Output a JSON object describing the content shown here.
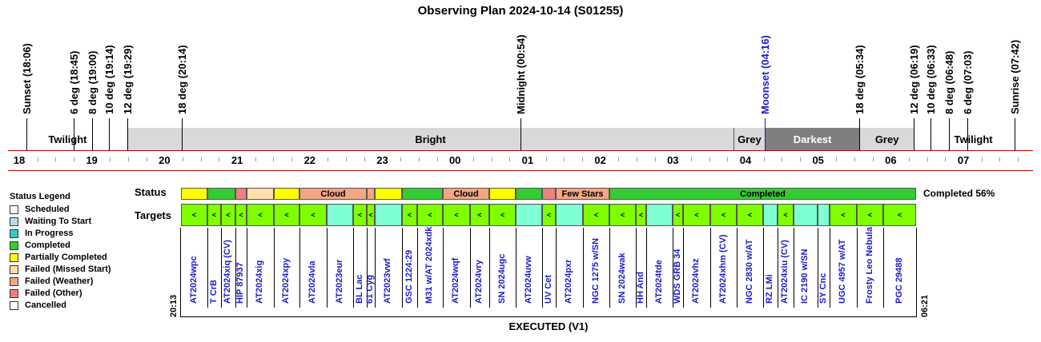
{
  "title": "Observing Plan 2024-10-14 (S01255)",
  "events": [
    {
      "label": "Sunset (18:06)",
      "hour": 18.1,
      "color": "#000"
    },
    {
      "label": "6 deg (18:45)",
      "hour": 18.75,
      "color": "#000"
    },
    {
      "label": "8 deg (19:00)",
      "hour": 19.0,
      "color": "#000"
    },
    {
      "label": "10 deg (19:14)",
      "hour": 19.233,
      "color": "#000"
    },
    {
      "label": "12 deg (19:29)",
      "hour": 19.483,
      "color": "#000"
    },
    {
      "label": "18 deg (20:14)",
      "hour": 20.233,
      "color": "#000"
    },
    {
      "label": "Midnight (00:54)",
      "hour": 24.9,
      "color": "#000"
    },
    {
      "label": "Moonset (04:16)",
      "hour": 28.267,
      "color": "#1a1acc"
    },
    {
      "label": "18 deg (05:34)",
      "hour": 29.567,
      "color": "#000"
    },
    {
      "label": "12 deg (06:19)",
      "hour": 30.317,
      "color": "#000"
    },
    {
      "label": "10 deg (06:33)",
      "hour": 30.55,
      "color": "#000"
    },
    {
      "label": "8 deg (06:48)",
      "hour": 30.8,
      "color": "#000"
    },
    {
      "label": "6 deg (07:03)",
      "hour": 31.05,
      "color": "#000"
    },
    {
      "label": "Sunrise (07:42)",
      "hour": 31.7,
      "color": "#000"
    }
  ],
  "bands": [
    {
      "label": "Twilight",
      "start": 17.85,
      "end": 19.483,
      "bg": "#ffffff",
      "fg": "#000"
    },
    {
      "label": "Bright",
      "start": 19.483,
      "end": 27.83,
      "bg": "#d9d9d9",
      "fg": "#000"
    },
    {
      "label": "Grey",
      "start": 27.83,
      "end": 28.267,
      "bg": "#d9d9d9",
      "fg": "#000"
    },
    {
      "label": "Darkest",
      "start": 28.267,
      "end": 29.567,
      "bg": "#7f7f7f",
      "fg": "#ffffff"
    },
    {
      "label": "Grey",
      "start": 29.567,
      "end": 30.317,
      "bg": "#d9d9d9",
      "fg": "#000"
    },
    {
      "label": "Twilight",
      "start": 30.317,
      "end": 32.0,
      "bg": "#ffffff",
      "fg": "#000"
    }
  ],
  "hours": [
    "18",
    "19",
    "20",
    "21",
    "22",
    "23",
    "00",
    "01",
    "02",
    "03",
    "04",
    "05",
    "06",
    "07"
  ],
  "labels": {
    "status": "Status",
    "targets": "Targets",
    "start_time": "20:13",
    "end_time": "06:21",
    "footer": "EXECUTED (V1)",
    "completed": "Completed 56%"
  },
  "legend": {
    "title": "Status Legend",
    "items": [
      {
        "label": "Scheduled",
        "color": "#ffffff"
      },
      {
        "label": "Waiting To Start",
        "color": "#b7dee8"
      },
      {
        "label": "In Progress",
        "color": "#33cccc"
      },
      {
        "label": "Completed",
        "color": "#33cc33"
      },
      {
        "label": "Partially Completed",
        "color": "#ffff00"
      },
      {
        "label": "Failed (Missed Start)",
        "color": "#ffdead"
      },
      {
        "label": "Failed (Weather)",
        "color": "#f4a582"
      },
      {
        "label": "Failed (Other)",
        "color": "#f08080"
      },
      {
        "label": "Cancelled",
        "color": "#ffffff"
      }
    ]
  },
  "status_segments": [
    {
      "x0": 226,
      "x1": 259,
      "color": "#ffff00",
      "label": ""
    },
    {
      "x0": 259,
      "x1": 294,
      "color": "#33cc33",
      "label": ""
    },
    {
      "x0": 294,
      "x1": 308,
      "color": "#f08080",
      "label": ""
    },
    {
      "x0": 308,
      "x1": 342,
      "color": "#ffdead",
      "label": ""
    },
    {
      "x0": 342,
      "x1": 374,
      "color": "#ffff00",
      "label": ""
    },
    {
      "x0": 374,
      "x1": 458,
      "color": "#f4a582",
      "label": "Cloud"
    },
    {
      "x0": 458,
      "x1": 468,
      "color": "#f4a582",
      "label": ""
    },
    {
      "x0": 468,
      "x1": 502,
      "color": "#ffff00",
      "label": ""
    },
    {
      "x0": 502,
      "x1": 553,
      "color": "#33cc33",
      "label": ""
    },
    {
      "x0": 553,
      "x1": 611,
      "color": "#f4a582",
      "label": "Cloud"
    },
    {
      "x0": 611,
      "x1": 644,
      "color": "#ffff00",
      "label": ""
    },
    {
      "x0": 644,
      "x1": 677,
      "color": "#33cc33",
      "label": ""
    },
    {
      "x0": 677,
      "x1": 694,
      "color": "#f08080",
      "label": ""
    },
    {
      "x0": 694,
      "x1": 761,
      "color": "#f4a582",
      "label": "Few Stars"
    },
    {
      "x0": 761,
      "x1": 1144,
      "color": "#33cc33",
      "label": "Completed"
    }
  ],
  "targets": [
    {
      "x0": 226,
      "x1": 259,
      "color": "#7fff00",
      "mark": "<",
      "name": "AT2024wpc"
    },
    {
      "x0": 259,
      "x1": 276,
      "color": "#7fff00",
      "mark": "<",
      "name": "T CrB"
    },
    {
      "x0": 276,
      "x1": 294,
      "color": "#7fff00",
      "mark": "<",
      "name": "AT2024xiq (CV)"
    },
    {
      "x0": 294,
      "x1": 308,
      "color": "#7fff00",
      "mark": "<",
      "name": "HIP 87937"
    },
    {
      "x0": 308,
      "x1": 342,
      "color": "#7fff00",
      "mark": "<",
      "name": "AT2024xig"
    },
    {
      "x0": 342,
      "x1": 374,
      "color": "#7fff00",
      "mark": "<",
      "name": "AT2024xpy"
    },
    {
      "x0": 374,
      "x1": 408,
      "color": "#7fff00",
      "mark": "<",
      "name": "AT2024vla"
    },
    {
      "x0": 408,
      "x1": 441,
      "color": "#7fffd4",
      "mark": "",
      "name": "AT2023eur"
    },
    {
      "x0": 441,
      "x1": 458,
      "color": "#7fff00",
      "mark": "<",
      "name": "BL Lac"
    },
    {
      "x0": 458,
      "x1": 468,
      "color": "#7fff00",
      "mark": "<",
      "name": "61 Cyg"
    },
    {
      "x0": 468,
      "x1": 502,
      "color": "#7fffd4",
      "mark": "",
      "name": "AT2023vwf"
    },
    {
      "x0": 502,
      "x1": 521,
      "color": "#7fff00",
      "mark": "<",
      "name": "GSC 1224:29"
    },
    {
      "x0": 521,
      "x1": 553,
      "color": "#7fff00",
      "mark": "<",
      "name": "M31 w/AT 2024xdk"
    },
    {
      "x0": 553,
      "x1": 587,
      "color": "#7fff00",
      "mark": "<",
      "name": "AT2024wqf"
    },
    {
      "x0": 587,
      "x1": 611,
      "color": "#7fff00",
      "mark": "<",
      "name": "AT2024vry"
    },
    {
      "x0": 611,
      "x1": 644,
      "color": "#7fff00",
      "mark": "<",
      "name": "SN 2024ugc"
    },
    {
      "x0": 644,
      "x1": 677,
      "color": "#7fffd4",
      "mark": "",
      "name": "AT2024uvw"
    },
    {
      "x0": 677,
      "x1": 694,
      "color": "#7fff00",
      "mark": "<",
      "name": "UV Cet"
    },
    {
      "x0": 694,
      "x1": 728,
      "color": "#7fffd4",
      "mark": "",
      "name": "AT2024pxr"
    },
    {
      "x0": 728,
      "x1": 761,
      "color": "#7fff00",
      "mark": "<",
      "name": "NGC 1275 w/SN"
    },
    {
      "x0": 761,
      "x1": 794,
      "color": "#7fff00",
      "mark": "<",
      "name": "SN 2024wak"
    },
    {
      "x0": 794,
      "x1": 807,
      "color": "#7fff00",
      "mark": "<",
      "name": "HH And"
    },
    {
      "x0": 807,
      "x1": 840,
      "color": "#7fffd4",
      "mark": "",
      "name": "AT2024tde"
    },
    {
      "x0": 840,
      "x1": 853,
      "color": "#7fff00",
      "mark": "<",
      "name": "WDS GRB 34"
    },
    {
      "x0": 853,
      "x1": 887,
      "color": "#7fff00",
      "mark": "<",
      "name": "AT2024vhz"
    },
    {
      "x0": 887,
      "x1": 920,
      "color": "#7fff00",
      "mark": "<",
      "name": "AT2024xhm (CV)"
    },
    {
      "x0": 920,
      "x1": 953,
      "color": "#7fff00",
      "mark": "<",
      "name": "NGC 2830 w/AT"
    },
    {
      "x0": 953,
      "x1": 971,
      "color": "#7fffd4",
      "mark": "",
      "name": "RZ LMi"
    },
    {
      "x0": 971,
      "x1": 991,
      "color": "#7fff00",
      "mark": "<",
      "name": "AT2024xiu (CV)"
    },
    {
      "x0": 991,
      "x1": 1021,
      "color": "#7fffd4",
      "mark": "",
      "name": "IC 2190 w/SN"
    },
    {
      "x0": 1021,
      "x1": 1036,
      "color": "#7fffd4",
      "mark": "",
      "name": "SY Cnc"
    },
    {
      "x0": 1036,
      "x1": 1070,
      "color": "#7fff00",
      "mark": "<",
      "name": "UGC 4957 w/AT"
    },
    {
      "x0": 1070,
      "x1": 1103,
      "color": "#7fff00",
      "mark": "<",
      "name": "Frosty Leo Nebula"
    },
    {
      "x0": 1103,
      "x1": 1144,
      "color": "#7fff00",
      "mark": "<",
      "name": "PGC 29488"
    }
  ]
}
